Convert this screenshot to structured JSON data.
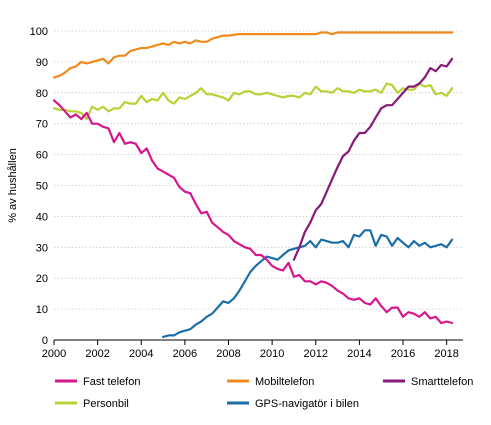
{
  "chart_data": {
    "type": "line",
    "ylabel": "% av hushållen",
    "xlim": [
      2000,
      2018.75
    ],
    "ylim": [
      0,
      100
    ],
    "xticks": [
      2000,
      2002,
      2004,
      2006,
      2008,
      2010,
      2012,
      2014,
      2016,
      2018
    ],
    "yticks": [
      0,
      10,
      20,
      30,
      40,
      50,
      60,
      70,
      80,
      90,
      100
    ],
    "grid": true,
    "legend_position": "bottom",
    "series": [
      {
        "name": "Fast telefon",
        "color": "#d6168c",
        "x": [
          2000.0,
          2000.25,
          2000.5,
          2000.75,
          2001.0,
          2001.25,
          2001.5,
          2001.75,
          2002.0,
          2002.25,
          2002.5,
          2002.75,
          2003.0,
          2003.25,
          2003.5,
          2003.75,
          2004.0,
          2004.25,
          2004.5,
          2004.75,
          2005.0,
          2005.25,
          2005.5,
          2005.75,
          2006.0,
          2006.25,
          2006.5,
          2006.75,
          2007.0,
          2007.25,
          2007.5,
          2007.75,
          2008.0,
          2008.25,
          2008.5,
          2008.75,
          2009.0,
          2009.25,
          2009.5,
          2009.75,
          2010.0,
          2010.25,
          2010.5,
          2010.75,
          2011.0,
          2011.25,
          2011.5,
          2011.75,
          2012.0,
          2012.25,
          2012.5,
          2012.75,
          2013.0,
          2013.25,
          2013.5,
          2013.75,
          2014.0,
          2014.25,
          2014.5,
          2014.75,
          2015.0,
          2015.25,
          2015.5,
          2015.75,
          2016.0,
          2016.25,
          2016.5,
          2016.75,
          2017.0,
          2017.25,
          2017.5,
          2017.75,
          2018.0,
          2018.25
        ],
        "values": [
          77.5,
          76,
          74,
          72,
          73,
          71.5,
          73.5,
          70,
          70,
          69,
          68.5,
          64,
          67,
          63.5,
          64,
          63.5,
          60.5,
          62,
          58,
          55.5,
          54.5,
          53.5,
          52.5,
          49.5,
          48,
          47.5,
          44,
          41,
          41.5,
          38,
          36.5,
          35,
          34,
          32,
          31,
          30,
          29.5,
          27.5,
          27.5,
          26,
          24,
          23,
          22.5,
          25,
          20.5,
          21,
          19,
          19,
          18,
          19,
          18.5,
          17.5,
          16,
          15,
          13.5,
          13,
          13.5,
          12,
          11.5,
          13.5,
          11,
          9,
          10.5,
          10.5,
          7.5,
          9,
          8.5,
          7.5,
          9,
          7,
          7.5,
          5.5,
          6,
          5.5
        ]
      },
      {
        "name": "Mobiltelefon",
        "color": "#f08a1c",
        "x": [
          2000.0,
          2000.25,
          2000.5,
          2000.75,
          2001.0,
          2001.25,
          2001.5,
          2001.75,
          2002.0,
          2002.25,
          2002.5,
          2002.75,
          2003.0,
          2003.25,
          2003.5,
          2003.75,
          2004.0,
          2004.25,
          2004.5,
          2004.75,
          2005.0,
          2005.25,
          2005.5,
          2005.75,
          2006.0,
          2006.25,
          2006.5,
          2006.75,
          2007.0,
          2007.25,
          2007.5,
          2007.75,
          2008.0,
          2008.5,
          2009.0,
          2009.5,
          2010.0,
          2010.5,
          2011.0,
          2011.5,
          2012.0,
          2012.25,
          2012.5,
          2012.75,
          2013.0,
          2013.5,
          2014.0,
          2014.5,
          2015.0,
          2015.5,
          2016.0,
          2016.5,
          2017.0,
          2017.5,
          2018.0,
          2018.25
        ],
        "values": [
          85,
          85.5,
          86.5,
          88,
          88.5,
          90,
          89.5,
          90,
          90.5,
          91,
          89.5,
          91.5,
          92,
          92,
          93.5,
          94,
          94.5,
          94.5,
          95,
          95.5,
          96,
          95.5,
          96.5,
          96,
          96.5,
          96,
          97,
          96.5,
          96.5,
          97.5,
          98,
          98.5,
          98.5,
          99,
          99,
          99,
          99,
          99,
          99,
          99,
          99,
          99.5,
          99.5,
          99,
          99.5,
          99.5,
          99.5,
          99.5,
          99.5,
          99.5,
          99.5,
          99.5,
          99.5,
          99.5,
          99.5,
          99.5
        ]
      },
      {
        "name": "Smarttelefon",
        "color": "#86197a",
        "x": [
          2011.0,
          2011.25,
          2011.5,
          2011.75,
          2012.0,
          2012.25,
          2012.5,
          2012.75,
          2013.0,
          2013.25,
          2013.5,
          2013.75,
          2014.0,
          2014.25,
          2014.5,
          2014.75,
          2015.0,
          2015.25,
          2015.5,
          2015.75,
          2016.0,
          2016.25,
          2016.5,
          2016.75,
          2017.0,
          2017.25,
          2017.5,
          2017.75,
          2018.0,
          2018.25
        ],
        "values": [
          26,
          30,
          35,
          38,
          42,
          44,
          48,
          52,
          56,
          59.5,
          61,
          64.5,
          67,
          67,
          69,
          72,
          75,
          76,
          76,
          78,
          80,
          82,
          82,
          83,
          85,
          88,
          87,
          89,
          88.5,
          91
        ]
      },
      {
        "name": "Personbil",
        "color": "#b5d334",
        "x": [
          2000.0,
          2000.25,
          2000.5,
          2000.75,
          2001.0,
          2001.25,
          2001.5,
          2001.75,
          2002.0,
          2002.25,
          2002.5,
          2002.75,
          2003.0,
          2003.25,
          2003.5,
          2003.75,
          2004.0,
          2004.25,
          2004.5,
          2004.75,
          2005.0,
          2005.25,
          2005.5,
          2005.75,
          2006.0,
          2006.25,
          2006.5,
          2006.75,
          2007.0,
          2007.25,
          2007.5,
          2007.75,
          2008.0,
          2008.25,
          2008.5,
          2008.75,
          2009.0,
          2009.25,
          2009.5,
          2009.75,
          2010.0,
          2010.25,
          2010.5,
          2010.75,
          2011.0,
          2011.25,
          2011.5,
          2011.75,
          2012.0,
          2012.25,
          2012.5,
          2012.75,
          2013.0,
          2013.25,
          2013.5,
          2013.75,
          2014.0,
          2014.25,
          2014.5,
          2014.75,
          2015.0,
          2015.25,
          2015.5,
          2015.75,
          2016.0,
          2016.25,
          2016.5,
          2016.75,
          2017.0,
          2017.25,
          2017.5,
          2017.75,
          2018.0,
          2018.25
        ],
        "values": [
          75,
          74.5,
          74.5,
          74,
          74,
          73.5,
          71.5,
          75.5,
          74.5,
          75.5,
          74,
          75,
          75,
          77,
          76.5,
          76.5,
          79,
          77,
          78,
          77.5,
          80,
          77.5,
          76.5,
          78.5,
          78,
          79,
          80,
          81.5,
          79.5,
          79.5,
          79,
          78.5,
          77.5,
          80,
          79.5,
          80.5,
          80.5,
          79.5,
          79.5,
          80,
          79.5,
          79,
          78.5,
          79,
          79,
          78.5,
          80,
          79.5,
          82,
          80.5,
          80.5,
          80,
          81.5,
          80.5,
          80.5,
          80,
          81,
          80.5,
          80.5,
          81,
          80,
          83,
          82.5,
          80,
          81.5,
          81,
          81,
          83,
          82,
          82.5,
          79.5,
          80,
          79,
          81.5
        ]
      },
      {
        "name": "GPS-navigatör i bilen",
        "color": "#1c6ea6",
        "x": [
          2005.0,
          2005.25,
          2005.5,
          2005.75,
          2006.0,
          2006.25,
          2006.5,
          2006.75,
          2007.0,
          2007.25,
          2007.5,
          2007.75,
          2008.0,
          2008.25,
          2008.5,
          2008.75,
          2009.0,
          2009.25,
          2009.5,
          2009.75,
          2010.0,
          2010.25,
          2010.5,
          2010.75,
          2011.0,
          2011.25,
          2011.5,
          2011.75,
          2012.0,
          2012.25,
          2012.5,
          2012.75,
          2013.0,
          2013.25,
          2013.5,
          2013.75,
          2014.0,
          2014.25,
          2014.5,
          2014.75,
          2015.0,
          2015.25,
          2015.5,
          2015.75,
          2016.0,
          2016.25,
          2016.5,
          2016.75,
          2017.0,
          2017.25,
          2017.5,
          2017.75,
          2018.0,
          2018.25
        ],
        "values": [
          1,
          1.5,
          1.5,
          2.5,
          3,
          3.5,
          5,
          6,
          7.5,
          8.5,
          10.5,
          12.5,
          12,
          13.5,
          16,
          19,
          22,
          24,
          25.5,
          27,
          26.5,
          26,
          27.5,
          29,
          29.5,
          30,
          30.5,
          32,
          30,
          32.5,
          32,
          31.5,
          31.5,
          32,
          30,
          34,
          33.5,
          35.5,
          35.5,
          30.5,
          34,
          33.5,
          30.5,
          33,
          31.5,
          30,
          32,
          30.5,
          31.5,
          30,
          30.5,
          31,
          30,
          32.5
        ]
      }
    ]
  }
}
